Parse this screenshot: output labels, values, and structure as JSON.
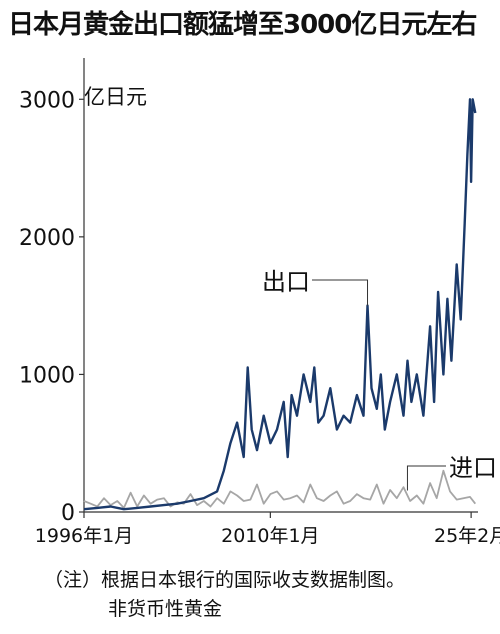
{
  "chart_data": {
    "type": "line",
    "title": "日本月黄金出口额猛增至3000亿日元左右",
    "unit_label": "亿日元",
    "ylim": [
      0,
      3300
    ],
    "xlim": [
      1996.0,
      2025.6
    ],
    "y_ticks": [
      {
        "value": 0,
        "label": "0"
      },
      {
        "value": 1000,
        "label": "1000"
      },
      {
        "value": 2000,
        "label": "2000"
      },
      {
        "value": 3000,
        "label": "3000"
      }
    ],
    "x_ticks": [
      {
        "value": 1996.0,
        "label": "1996年1月"
      },
      {
        "value": 2010.0,
        "label": "2010年1月"
      },
      {
        "value": 2025.083,
        "label": "25年2月"
      }
    ],
    "colors": {
      "export": "#1b3a6b",
      "import": "#a6a6a6",
      "axis": "#333333"
    },
    "series": [
      {
        "name": "出口",
        "x": [
          1996.0,
          1997.0,
          1998.0,
          1999.0,
          2000.0,
          2001.0,
          2002.0,
          2003.0,
          2004.0,
          2005.0,
          2006.0,
          2006.5,
          2007.0,
          2007.5,
          2008.0,
          2008.3,
          2008.6,
          2009.0,
          2009.5,
          2010.0,
          2010.5,
          2011.0,
          2011.3,
          2011.6,
          2012.0,
          2012.5,
          2013.0,
          2013.3,
          2013.6,
          2014.0,
          2014.5,
          2015.0,
          2015.5,
          2016.0,
          2016.5,
          2017.0,
          2017.3,
          2017.6,
          2018.0,
          2018.3,
          2018.6,
          2019.0,
          2019.5,
          2020.0,
          2020.3,
          2020.6,
          2021.0,
          2021.5,
          2022.0,
          2022.3,
          2022.6,
          2023.0,
          2023.3,
          2023.6,
          2024.0,
          2024.3,
          2024.6,
          2024.8,
          2025.0,
          2025.08,
          2025.2,
          2025.4
        ],
        "y": [
          20,
          30,
          40,
          20,
          30,
          40,
          50,
          60,
          80,
          100,
          150,
          300,
          500,
          650,
          400,
          1050,
          600,
          450,
          700,
          500,
          600,
          800,
          400,
          850,
          700,
          1000,
          800,
          1050,
          650,
          700,
          900,
          600,
          700,
          650,
          850,
          700,
          1500,
          900,
          750,
          1000,
          600,
          800,
          1000,
          700,
          1100,
          800,
          1000,
          700,
          1350,
          800,
          1600,
          1000,
          1550,
          1100,
          1800,
          1400,
          2100,
          2600,
          3000,
          2400,
          3000,
          2900
        ]
      },
      {
        "name": "进口",
        "x": [
          1996.0,
          1996.5,
          1997.0,
          1997.5,
          1998.0,
          1998.5,
          1999.0,
          1999.5,
          2000.0,
          2000.5,
          2001.0,
          2001.5,
          2002.0,
          2002.5,
          2003.0,
          2003.5,
          2004.0,
          2004.5,
          2005.0,
          2005.5,
          2006.0,
          2006.5,
          2007.0,
          2007.5,
          2008.0,
          2008.5,
          2009.0,
          2009.5,
          2010.0,
          2010.5,
          2011.0,
          2011.5,
          2012.0,
          2012.5,
          2013.0,
          2013.5,
          2014.0,
          2014.5,
          2015.0,
          2015.5,
          2016.0,
          2016.5,
          2017.0,
          2017.5,
          2018.0,
          2018.5,
          2019.0,
          2019.5,
          2020.0,
          2020.5,
          2021.0,
          2021.5,
          2022.0,
          2022.5,
          2023.0,
          2023.5,
          2024.0,
          2024.5,
          2025.0,
          2025.4
        ],
        "y": [
          80,
          60,
          40,
          100,
          50,
          80,
          30,
          140,
          40,
          120,
          60,
          90,
          100,
          40,
          70,
          60,
          130,
          50,
          80,
          40,
          100,
          60,
          150,
          120,
          80,
          90,
          200,
          60,
          130,
          150,
          90,
          100,
          120,
          70,
          200,
          100,
          80,
          120,
          150,
          60,
          80,
          130,
          100,
          90,
          200,
          60,
          160,
          100,
          180,
          80,
          120,
          60,
          210,
          100,
          300,
          150,
          90,
          100,
          110,
          60
        ]
      }
    ],
    "annotations": [
      {
        "series": "出口",
        "text": "出口",
        "at_x": 2017.3,
        "at_y": 1500
      },
      {
        "series": "进口",
        "text": "进口",
        "at_x": 2020.3,
        "at_y": 200
      }
    ],
    "grid": false,
    "legend": "none"
  },
  "notes": {
    "line1": "（注）根据日本银行的国际收支数据制图。",
    "line2": "非货币性黄金"
  }
}
